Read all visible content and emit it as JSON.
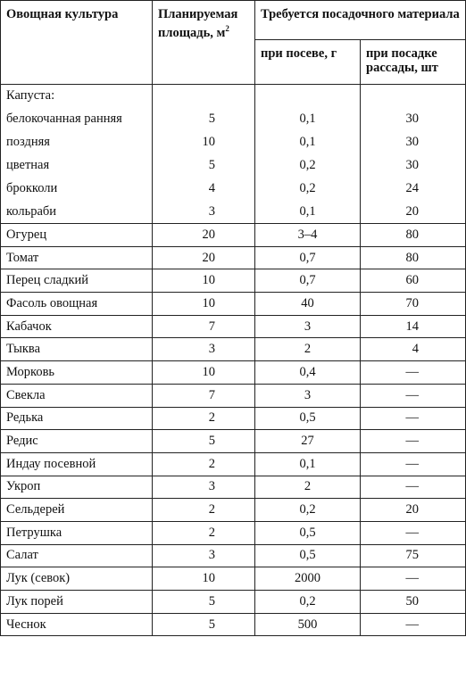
{
  "header": {
    "culture": "Овощная культура",
    "area": "Планируемая площадь, м",
    "area_sup": "2",
    "material": "Требуется посадочного материала",
    "seed": "при посеве, г",
    "seedlings": "при посадке рассады, шт"
  },
  "cabbage": {
    "label": "Капуста:",
    "rows": [
      [
        "белокочанная ранняя",
        "5",
        "0,1",
        "30"
      ],
      [
        "поздняя",
        "10",
        "0,1",
        "30"
      ],
      [
        "цветная",
        "5",
        "0,2",
        "30"
      ],
      [
        "брокколи",
        "4",
        "0,2",
        "24"
      ],
      [
        "кольраби",
        "3",
        "0,1",
        "20"
      ]
    ]
  },
  "rows": [
    [
      "Огурец",
      "20",
      "3–4",
      "80"
    ],
    [
      "Томат",
      "20",
      "0,7",
      "80"
    ],
    [
      "Перец сладкий",
      "10",
      "0,7",
      "60"
    ],
    [
      "Фасоль овощная",
      "10",
      "40",
      "70"
    ],
    [
      "Кабачок",
      "7",
      "3",
      "14"
    ],
    [
      "Тыква",
      "3",
      "2",
      "4"
    ],
    [
      "Морковь",
      "10",
      "0,4",
      "—"
    ],
    [
      "Свекла",
      "7",
      "3",
      "—"
    ],
    [
      "Редька",
      "2",
      "0,5",
      "—"
    ],
    [
      "Редис",
      "5",
      "27",
      "—"
    ],
    [
      "Индау посевной",
      "2",
      "0,1",
      "—"
    ],
    [
      "Укроп",
      "3",
      "2",
      "—"
    ],
    [
      "Сельдерей",
      "2",
      "0,2",
      "20"
    ],
    [
      "Петрушка",
      "2",
      "0,5",
      "—"
    ],
    [
      "Салат",
      "3",
      "0,5",
      "75"
    ],
    [
      "Лук (севок)",
      "10",
      "2000",
      "—"
    ],
    [
      "Лук порей",
      "5",
      "0,2",
      "50"
    ],
    [
      "Чеснок",
      "5",
      "500",
      "—"
    ]
  ]
}
